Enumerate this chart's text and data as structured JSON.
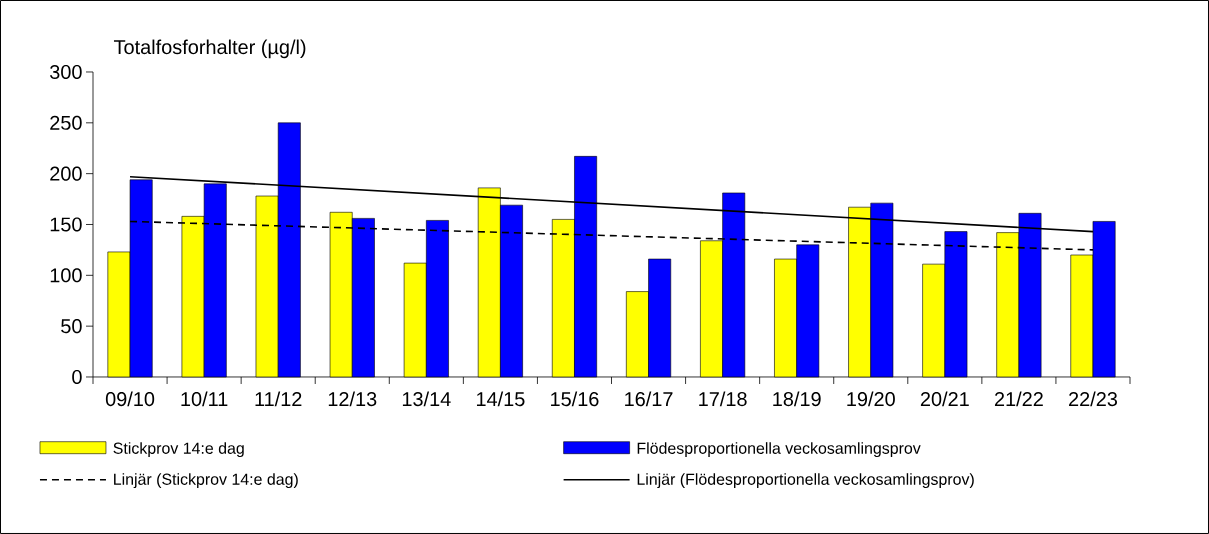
{
  "chart_data": {
    "type": "bar",
    "ylabel": "Totalfosforhalter (µg/l)",
    "categories": [
      "09/10",
      "10/11",
      "11/12",
      "12/13",
      "13/14",
      "14/15",
      "15/16",
      "16/17",
      "17/18",
      "18/19",
      "19/20",
      "20/21",
      "21/22",
      "22/23"
    ],
    "series": [
      {
        "name": "Stickprov 14:e dag",
        "color": "#ffff00",
        "values": [
          123,
          158,
          178,
          162,
          112,
          186,
          155,
          84,
          134,
          116,
          167,
          111,
          142,
          120
        ]
      },
      {
        "name": "Flödesproportionella veckosamlingsprov",
        "color": "#0000ff",
        "values": [
          194,
          190,
          250,
          156,
          154,
          169,
          217,
          116,
          181,
          130,
          171,
          143,
          161,
          153
        ]
      },
      {
        "name": "Linjär (Stickprov 14:e dag)",
        "type": "line",
        "color": "#000000",
        "line_style": "dashed",
        "x": [
          "09/10",
          "22/23"
        ],
        "values": [
          153,
          125
        ]
      },
      {
        "name": "Linjär (Flödesproportionella veckosamlingsprov)",
        "type": "line",
        "color": "#000000",
        "line_style": "solid",
        "x": [
          "09/10",
          "22/23"
        ],
        "values": [
          197,
          143
        ]
      }
    ],
    "ylim": [
      0,
      300
    ],
    "yticks": [
      0,
      50,
      100,
      150,
      200,
      250,
      300
    ],
    "legend": "bottom"
  }
}
